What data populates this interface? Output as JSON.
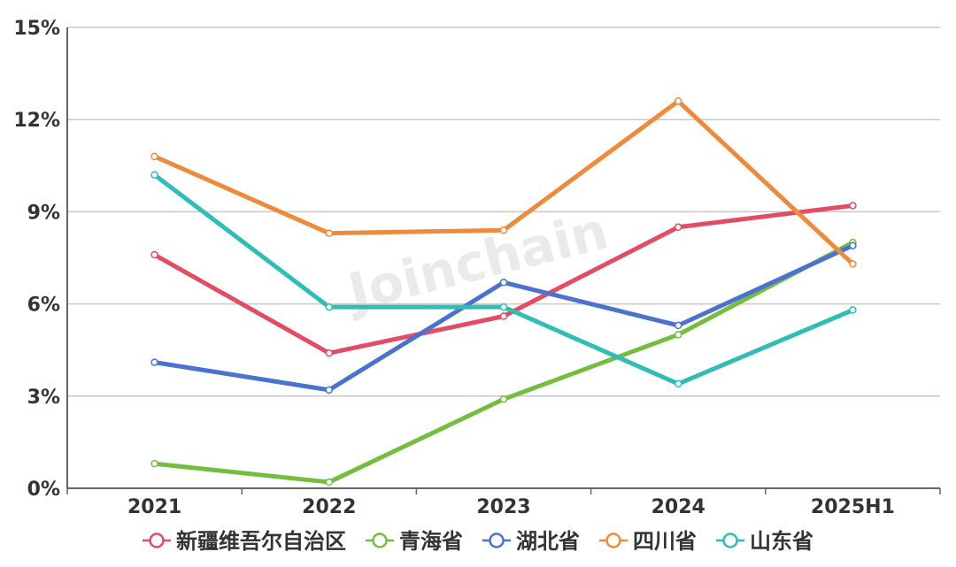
{
  "chart_data": {
    "type": "line",
    "categories": [
      "2021",
      "2022",
      "2023",
      "2024",
      "2025H1"
    ],
    "yticks": [
      "0%",
      "3%",
      "6%",
      "9%",
      "12%",
      "15%"
    ],
    "ylim": [
      0,
      15
    ],
    "grid": true,
    "legend_position": "bottom",
    "watermark": "Joinchain",
    "series": [
      {
        "name": "新疆维吾尔自治区",
        "color": "#e34c62",
        "values": [
          7.6,
          4.4,
          5.6,
          8.5,
          9.2
        ]
      },
      {
        "name": "青海省",
        "color": "#74bd3f",
        "values": [
          0.8,
          0.2,
          2.9,
          5.0,
          8.0
        ]
      },
      {
        "name": "湖北省",
        "color": "#4a72cf",
        "values": [
          4.1,
          3.2,
          6.7,
          5.3,
          7.9
        ]
      },
      {
        "name": "四川省",
        "color": "#ee8a3a",
        "values": [
          10.8,
          8.3,
          8.4,
          12.6,
          7.3
        ]
      },
      {
        "name": "山东省",
        "color": "#2ebeb6",
        "values": [
          10.2,
          5.9,
          5.9,
          3.4,
          5.8
        ]
      }
    ]
  }
}
